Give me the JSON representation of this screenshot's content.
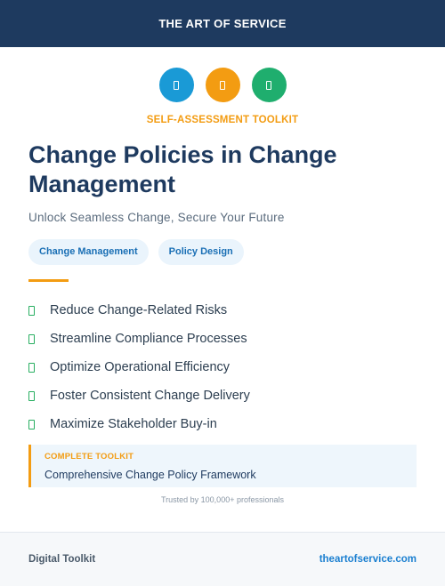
{
  "header": {
    "title": "THE ART OF SERVICE"
  },
  "icons": [
    {
      "name": "document-icon",
      "color": "#1a9ad6"
    },
    {
      "name": "clipboard-icon",
      "color": "#f39c12"
    },
    {
      "name": "checklist-icon",
      "color": "#1fae6e"
    }
  ],
  "kicker": "SELF-ASSESSMENT TOOLKIT",
  "title": "Change Policies in Change Management",
  "subtitle": "Unlock Seamless Change, Secure Your Future",
  "tags": [
    "Change Management",
    "Policy Design"
  ],
  "benefits": [
    "Reduce Change-Related Risks",
    "Streamline Compliance Processes",
    "Optimize Operational Efficiency",
    "Foster Consistent Change Delivery",
    "Maximize Stakeholder Buy-in"
  ],
  "callout": {
    "kicker": "COMPLETE TOOLKIT",
    "text": "Comprehensive Change Policy Framework"
  },
  "trusted": "Trusted by 100,000+ professionals",
  "footer": {
    "left": "Digital Toolkit",
    "right": "theartofservice.com"
  }
}
